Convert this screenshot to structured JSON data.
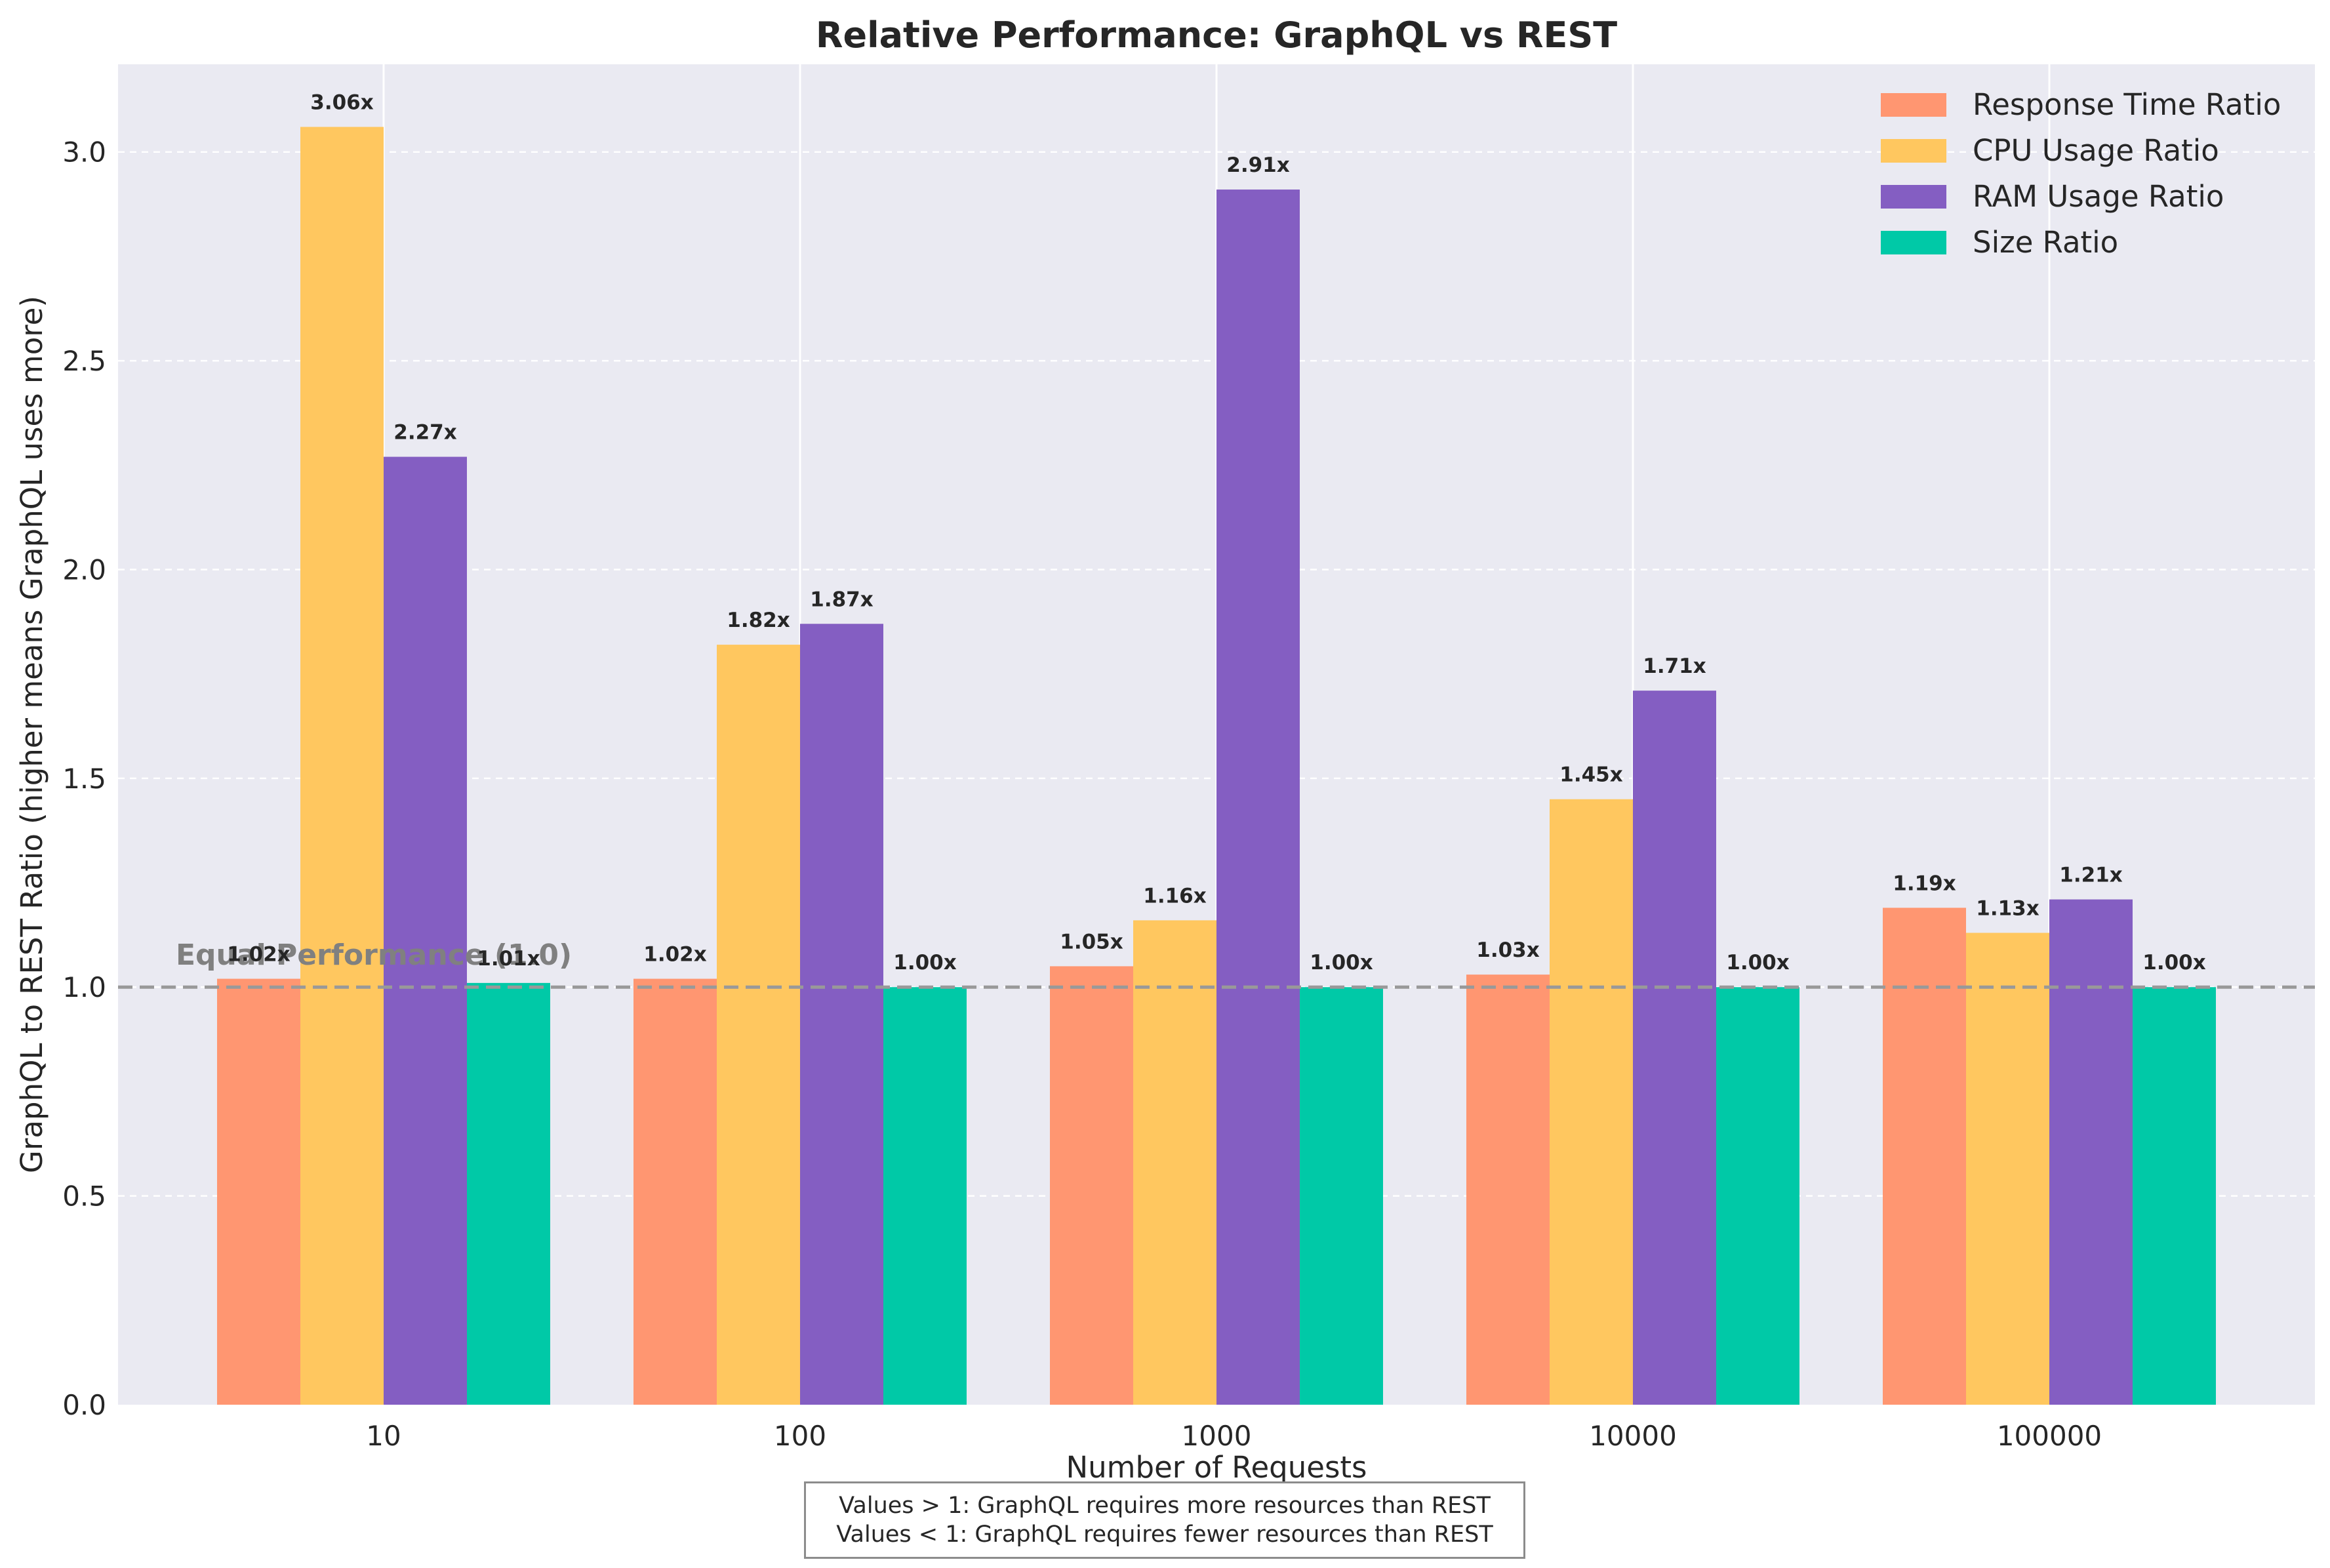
{
  "chart_data": {
    "type": "bar",
    "title": "Relative Performance: GraphQL vs REST",
    "xlabel": "Number of Requests",
    "ylabel": "GraphQL to REST Ratio (higher means GraphQL uses more)",
    "categories": [
      "10",
      "100",
      "1000",
      "10000",
      "100000"
    ],
    "series": [
      {
        "name": "Response Time Ratio",
        "color": "#ff9671",
        "values": [
          1.02,
          1.02,
          1.05,
          1.03,
          1.19
        ],
        "labels": [
          "1.02x",
          "1.02x",
          "1.05x",
          "1.03x",
          "1.19x"
        ]
      },
      {
        "name": "CPU Usage Ratio",
        "color": "#ffc75f",
        "values": [
          3.06,
          1.82,
          1.16,
          1.45,
          1.13
        ],
        "labels": [
          "3.06x",
          "1.82x",
          "1.16x",
          "1.45x",
          "1.13x"
        ]
      },
      {
        "name": "RAM Usage Ratio",
        "color": "#845ec2",
        "values": [
          2.27,
          1.87,
          2.91,
          1.71,
          1.21
        ],
        "labels": [
          "2.27x",
          "1.87x",
          "2.91x",
          "1.71x",
          "1.21x"
        ]
      },
      {
        "name": "Size Ratio",
        "color": "#00c9a7",
        "values": [
          1.01,
          1.0,
          1.0,
          1.0,
          1.0
        ],
        "labels": [
          "1.01x",
          "1.00x",
          "1.00x",
          "1.00x",
          "1.00x"
        ]
      }
    ],
    "ylim": [
      0,
      3.21
    ],
    "yticks": [
      "0.0",
      "0.5",
      "1.0",
      "1.5",
      "2.0",
      "2.5",
      "3.0"
    ],
    "ytick_values": [
      0,
      0.5,
      1.0,
      1.5,
      2.0,
      2.5,
      3.0
    ],
    "reference_line": {
      "value": 1.0,
      "label": "Equal Performance (1.0)",
      "color": "#999999"
    },
    "legend_position": "top-right",
    "grid": true,
    "background": "#eaeaf2"
  },
  "note": {
    "line1": "Values > 1: GraphQL requires more resources than REST",
    "line2": "Values < 1: GraphQL requires fewer resources than REST"
  }
}
